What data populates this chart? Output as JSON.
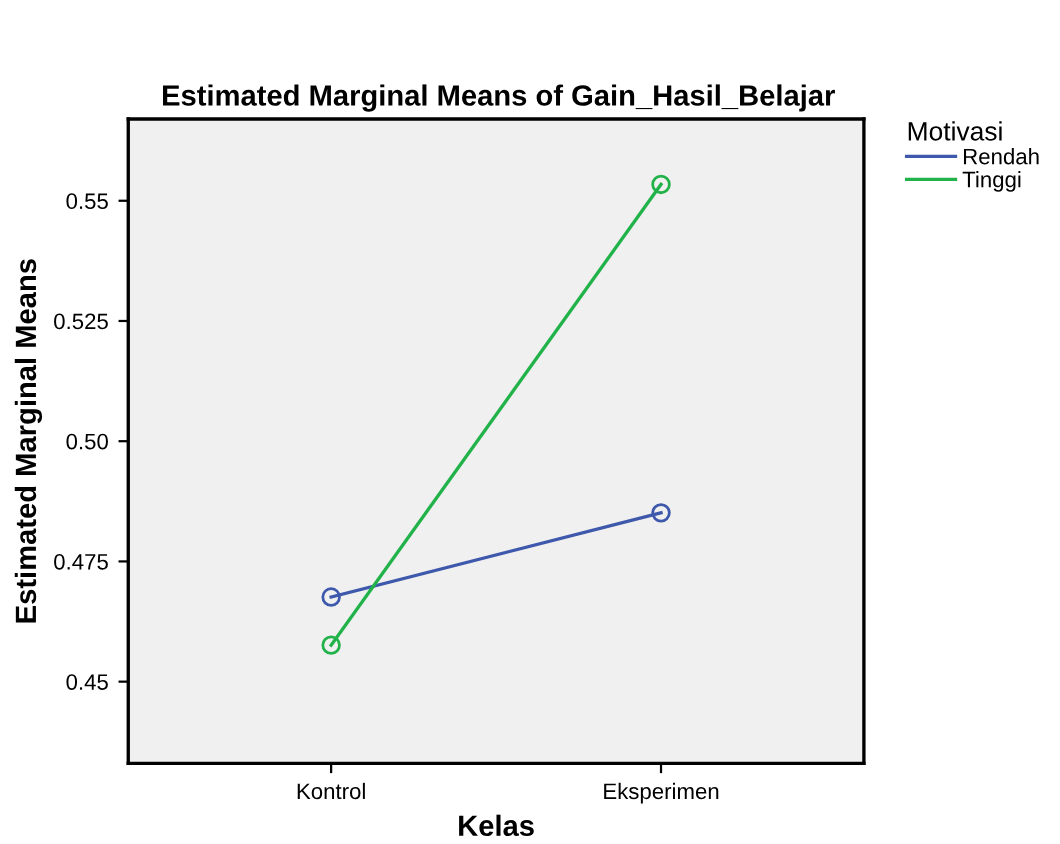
{
  "chart_data": {
    "type": "line",
    "title": "Estimated Marginal Means of Gain_Hasil_Belajar",
    "xlabel": "Kelas",
    "ylabel": "Estimated Marginal Means",
    "legend_title": "Motivasi",
    "categories": [
      "Kontrol",
      "Eksperimen"
    ],
    "series": [
      {
        "name": "Rendah",
        "color": "#3e58ac",
        "values": [
          0.4676,
          0.4851
        ]
      },
      {
        "name": "Tinggi",
        "color": "#22b24a",
        "values": [
          0.4576,
          0.5534
        ]
      }
    ],
    "ylim": [
      0.433,
      0.567
    ],
    "yticks": [
      0.45,
      0.475,
      {
        "value": 0.5,
        "label": "0.50"
      },
      0.525,
      0.55
    ],
    "marker": "circle",
    "line_style": "solid",
    "grid": false,
    "legend": "top right"
  }
}
